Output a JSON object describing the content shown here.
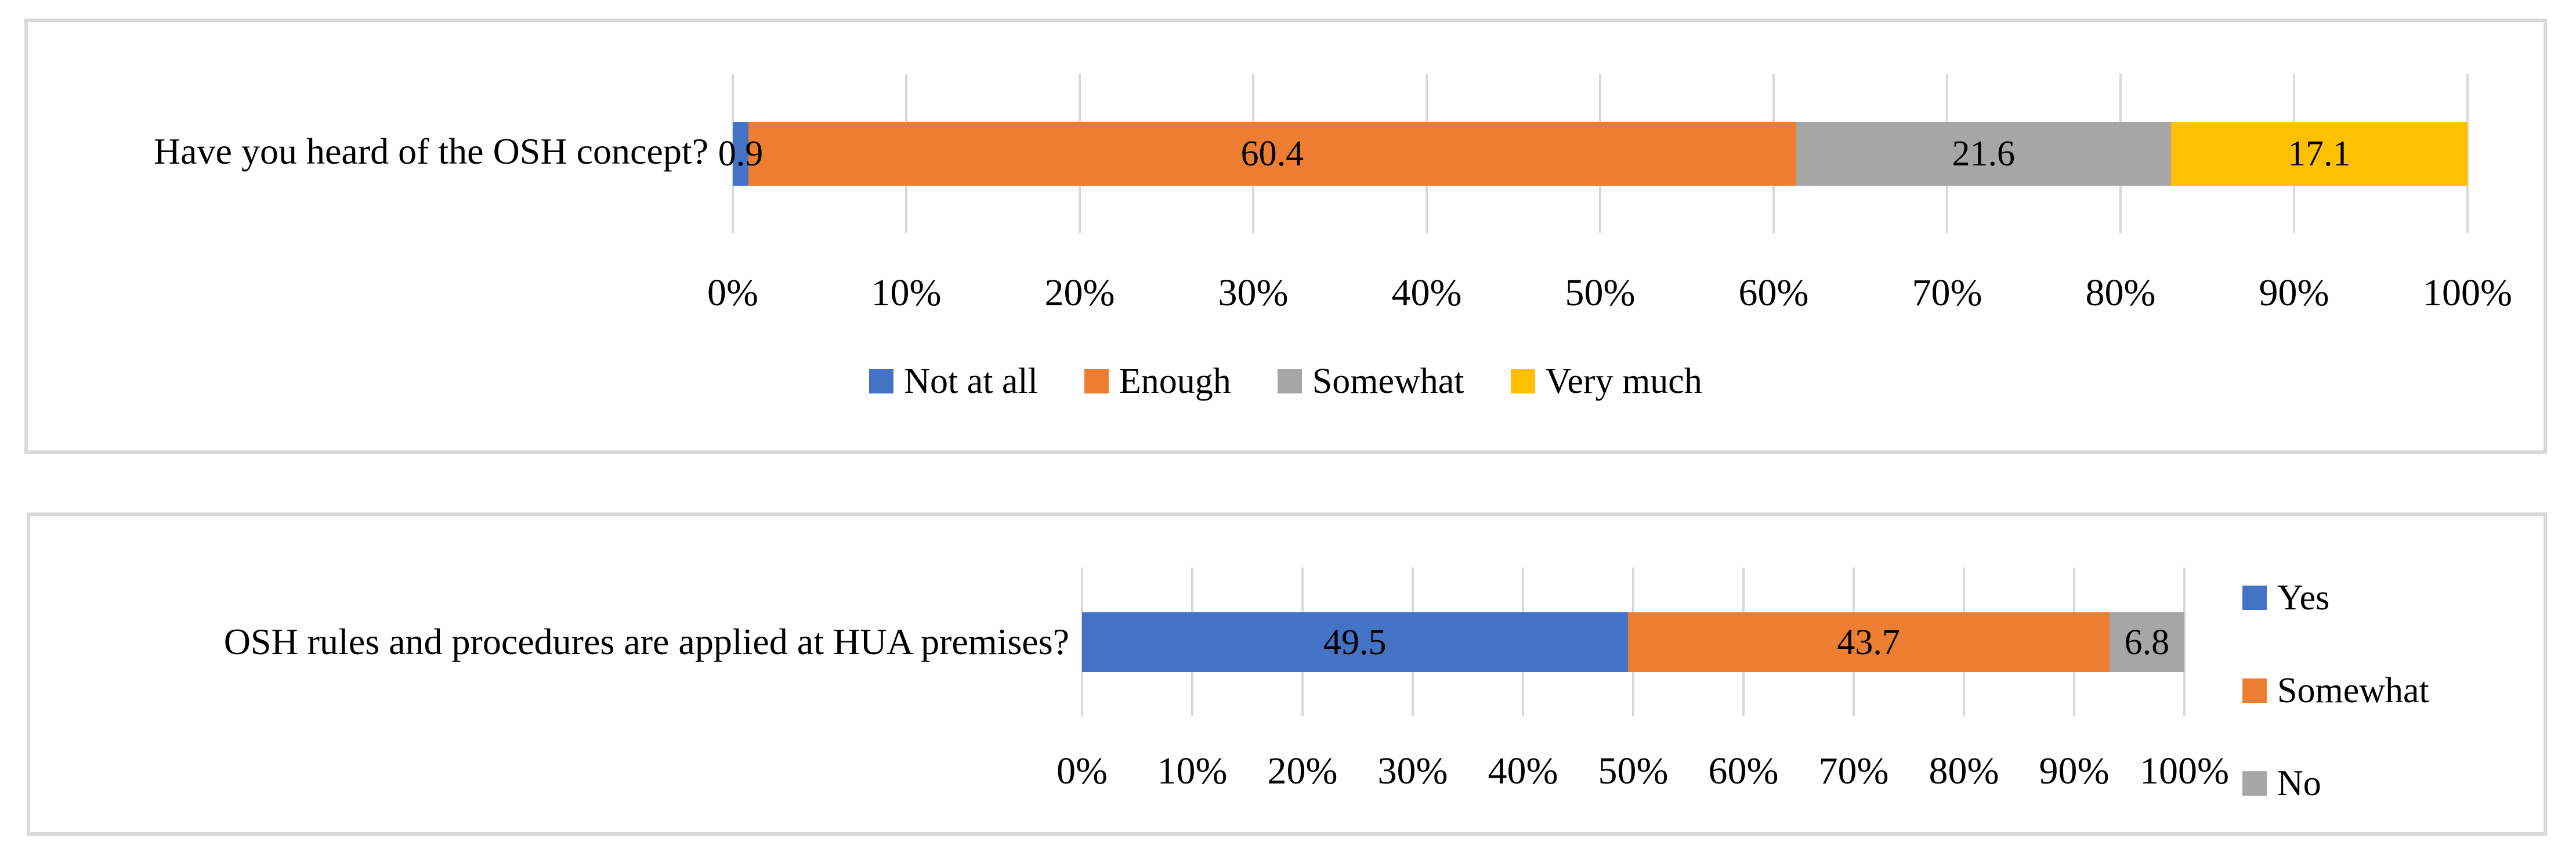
{
  "page": {
    "background": "#FFFFFF",
    "panel_border_color": "#D9D9D9",
    "gridline_color": "#D9D9D9"
  },
  "chart_data": [
    {
      "type": "bar",
      "orientation": "horizontal",
      "stacked": true,
      "title": "",
      "category": "Have you heard of the OSH concept?",
      "series": [
        {
          "name": "Not at all",
          "value": 0.9,
          "value_label": "0.9",
          "color": "#4472C4"
        },
        {
          "name": "Enough",
          "value": 60.4,
          "value_label": "60.4",
          "color": "#ED7D31"
        },
        {
          "name": "Somewhat",
          "value": 21.6,
          "value_label": "21.6",
          "color": "#A6A6A6"
        },
        {
          "name": "Very much",
          "value": 17.1,
          "value_label": "17.1",
          "color": "#FFC000"
        }
      ],
      "x_axis": {
        "min": 0,
        "max": 100,
        "unit": "%",
        "ticks": [
          "0%",
          "10%",
          "20%",
          "30%",
          "40%",
          "50%",
          "60%",
          "70%",
          "80%",
          "90%",
          "100%"
        ]
      },
      "gridlines": true,
      "legend": {
        "position": "bottom",
        "entries": [
          "Not at all",
          "Enough",
          "Somewhat",
          "Very much"
        ]
      }
    },
    {
      "type": "bar",
      "orientation": "horizontal",
      "stacked": true,
      "title": "",
      "category": "OSH rules and procedures are applied at HUA premises?",
      "series": [
        {
          "name": "Yes",
          "value": 49.5,
          "value_label": "49.5",
          "color": "#4472C4"
        },
        {
          "name": "Somewhat",
          "value": 43.7,
          "value_label": "43.7",
          "color": "#ED7D31"
        },
        {
          "name": "No",
          "value": 6.8,
          "value_label": "6.8",
          "color": "#A6A6A6"
        }
      ],
      "x_axis": {
        "min": 0,
        "max": 100,
        "unit": "%",
        "ticks": [
          "0%",
          "10%",
          "20%",
          "30%",
          "40%",
          "50%",
          "60%",
          "70%",
          "80%",
          "90%",
          "100%"
        ]
      },
      "gridlines": true,
      "legend": {
        "position": "right",
        "entries": [
          "Yes",
          "Somewhat",
          "No"
        ]
      }
    }
  ]
}
